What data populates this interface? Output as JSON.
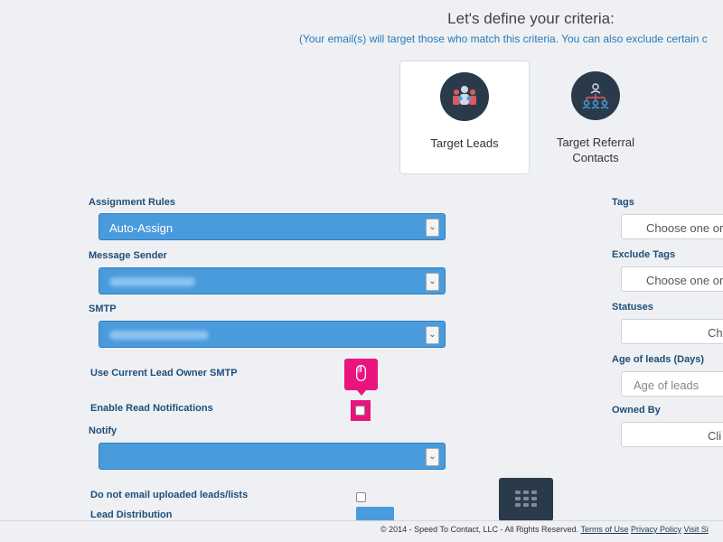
{
  "header": {
    "title": "Let's define your criteria:",
    "subtitle": "(Your email(s) will target those who match this criteria. You can also exclude certain c"
  },
  "targets": [
    {
      "label": "Target Leads",
      "icon": "people-group-icon",
      "selected": true
    },
    {
      "label": "Target Referral Contacts",
      "icon": "org-chart-icon",
      "selected": false
    }
  ],
  "form": {
    "assignment_rules": {
      "label": "Assignment Rules",
      "value": "Auto-Assign"
    },
    "message_sender": {
      "label": "Message Sender"
    },
    "smtp": {
      "label": "SMTP"
    },
    "use_owner_smtp": {
      "label": "Use Current Lead Owner SMTP"
    },
    "read_notifications": {
      "label": "Enable Read Notifications"
    },
    "notify": {
      "label": "Notify"
    },
    "no_email_uploaded": {
      "label": "Do not email uploaded leads/lists"
    },
    "lead_distribution": {
      "label": "Lead Distribution"
    }
  },
  "right": {
    "tags": {
      "label": "Tags",
      "placeholder": "Choose one or"
    },
    "exclude_tags": {
      "label": "Exclude Tags",
      "placeholder": "Choose one or"
    },
    "statuses": {
      "label": "Statuses",
      "placeholder": "Ch"
    },
    "age": {
      "label": "Age of leads (Days)",
      "placeholder": "Age of leads"
    },
    "owned_by": {
      "label": "Owned By",
      "placeholder": "Cli"
    }
  },
  "footer": {
    "copyright": "© 2014 - Speed To Contact, LLC - All Rights Reserved.",
    "terms": "Terms of Use",
    "privacy": "Privacy Policy",
    "visit": "Visit Si"
  },
  "colors": {
    "accent": "#4a9bdc",
    "highlight": "#e8157f",
    "dark": "#2b3a4a"
  }
}
